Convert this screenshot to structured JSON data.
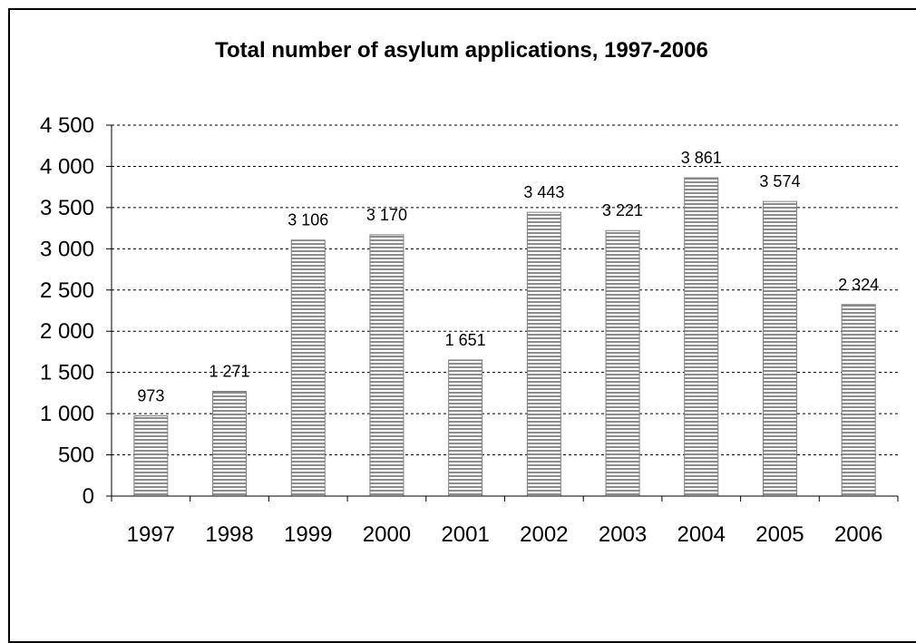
{
  "chart_data": {
    "type": "bar",
    "title": "Total number of asylum applications, 1997-2006",
    "xlabel": "",
    "ylabel": "",
    "categories": [
      "1997",
      "1998",
      "1999",
      "2000",
      "2001",
      "2002",
      "2003",
      "2004",
      "2005",
      "2006"
    ],
    "values": [
      973,
      1271,
      3106,
      3170,
      1651,
      3443,
      3221,
      3861,
      3574,
      2324
    ],
    "data_labels": [
      "973",
      "1 271",
      "3 106",
      "3 170",
      "1 651",
      "3 443",
      "3 221",
      "3 861",
      "3 574",
      "2 324"
    ],
    "ylim": [
      0,
      4500
    ],
    "yticks": [
      0,
      500,
      1000,
      1500,
      2000,
      2500,
      3000,
      3500,
      4000,
      4500
    ],
    "ytick_labels": [
      "0",
      "500",
      "1 000",
      "1 500",
      "2 000",
      "2 500",
      "3 000",
      "3 500",
      "4 000",
      "4 500"
    ],
    "grid": "horizontal-dashed",
    "legend": "none",
    "bar_fill": "horizontal-stripes",
    "colors": {
      "bar_stripe": "#8c8c8c",
      "bar_base": "#ffffff",
      "bar_border": "#7f7f7f",
      "grid": "#000000"
    }
  }
}
